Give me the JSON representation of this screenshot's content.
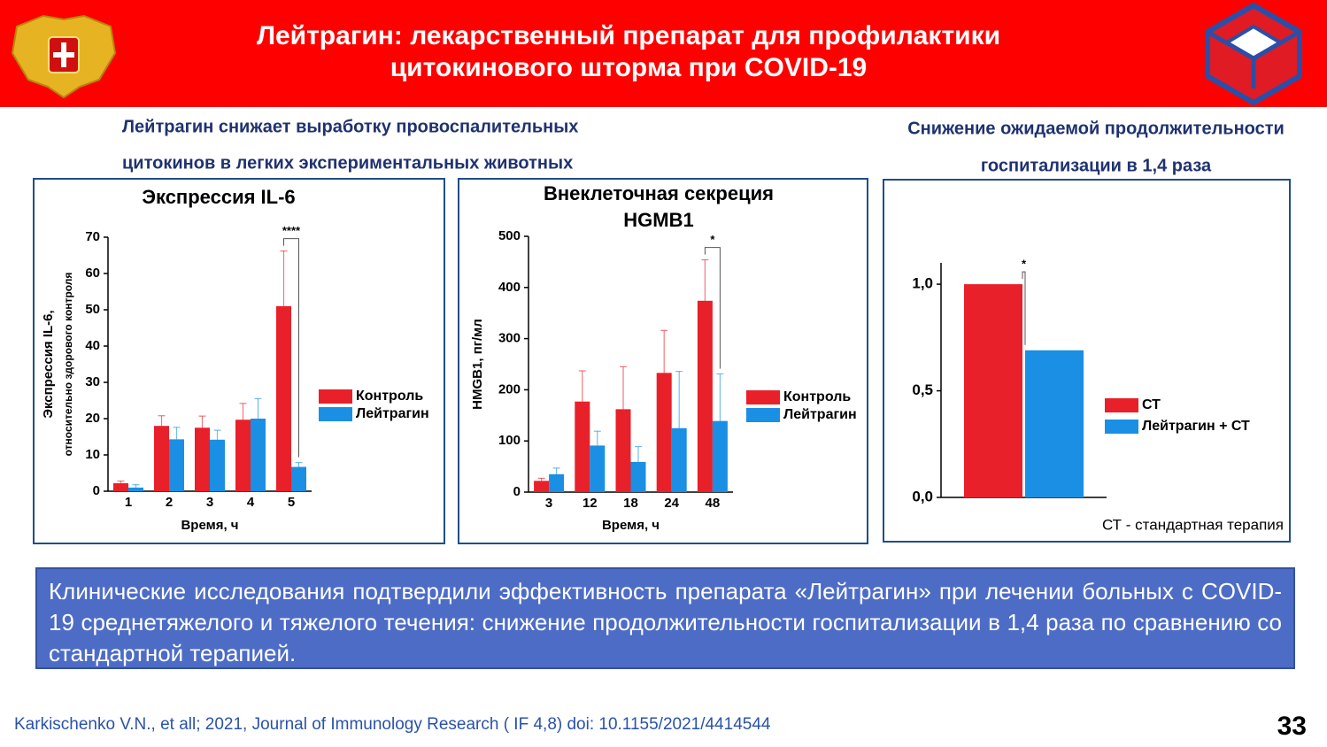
{
  "header": {
    "title": [
      "Лейтрагин: лекарственный препарат для профилактики",
      "цитокинового шторма при COVID-19"
    ]
  },
  "sections": [
    {
      "title": [
        "Лейтрагин снижает выработку провоспалительных",
        "цитокинов  в легких экспериментальных животных"
      ]
    },
    {
      "title": [
        "Снижение ожидаемой продолжительности",
        "госпитализации в 1,4 раза"
      ]
    }
  ],
  "chart_data": [
    {
      "type": "bar",
      "title": [
        "Экспрессия IL-6"
      ],
      "xlabel": "Время, ч",
      "ylabel": [
        "Экспрессия IL-6,",
        "относительно здорового контроля"
      ],
      "categories": [
        "1",
        "2",
        "3",
        "4",
        "5"
      ],
      "series": [
        {
          "name": "Контроль",
          "color": "#e8202a",
          "values": [
            2.2,
            18,
            17.5,
            19.7,
            51
          ],
          "errors": [
            0.6,
            2.8,
            3.2,
            4.5,
            15.2
          ]
        },
        {
          "name": "Лейтрагин",
          "color": "#1a8fe3",
          "values": [
            1,
            14.3,
            14.2,
            20,
            6.7
          ],
          "errors": [
            0.8,
            3.3,
            2.6,
            5.5,
            1.2
          ]
        }
      ],
      "ylim": [
        0,
        70
      ],
      "yticks": [
        0,
        10,
        20,
        30,
        40,
        50,
        60,
        70
      ],
      "grid": false,
      "legend": "right",
      "annotation": "****"
    },
    {
      "type": "bar",
      "title": [
        "Внеклеточная секреция",
        "HGMB1"
      ],
      "xlabel": "Время, ч",
      "ylabel": [
        "HMGB1, пг/мл"
      ],
      "categories": [
        "3",
        "12",
        "18",
        "24",
        "48"
      ],
      "series": [
        {
          "name": "Контроль",
          "color": "#e8202a",
          "values": [
            22,
            177,
            162,
            233,
            374
          ],
          "errors": [
            5,
            60,
            83,
            83,
            80
          ]
        },
        {
          "name": "Лейтрагин",
          "color": "#1a8fe3",
          "values": [
            35,
            91,
            59,
            125,
            139
          ],
          "errors": [
            12,
            28,
            30,
            111,
            92
          ]
        }
      ],
      "ylim": [
        0,
        500
      ],
      "yticks": [
        0,
        100,
        200,
        300,
        400,
        500
      ],
      "grid": false,
      "legend": "right",
      "annotation": "*"
    },
    {
      "type": "bar",
      "categories": [
        null
      ],
      "series": [
        {
          "name": "СТ",
          "color": "#e8202a",
          "values": [
            1.0
          ]
        },
        {
          "name": "Лейтрагин + СТ",
          "color": "#1a8fe3",
          "values": [
            0.69
          ]
        }
      ],
      "ylim": [
        0,
        1.1
      ],
      "yticks": [
        {
          "value": 0,
          "label": "0,0"
        },
        {
          "value": 0.5,
          "label": "0,5"
        },
        {
          "value": 1,
          "label": "1,0"
        }
      ],
      "grid": false,
      "legend": "right",
      "annotation": "*",
      "note": "СТ - стандартная терапия"
    }
  ],
  "conclusion": "Клинические исследования подтвердили эффективность препарата «Лейтрагин» при лечении больных с COVID-19 среднетяжелого и тяжелого течения: снижение продолжительности госпитализации в 1,4 раза по сравнению со стандартной терапией.",
  "footer": {
    "citation": "Karkischenko V.N., et all; 2021, Journal of Immunology Research ( IF 4,8) doi: 10.1155/2021/4414544",
    "page": 33
  }
}
